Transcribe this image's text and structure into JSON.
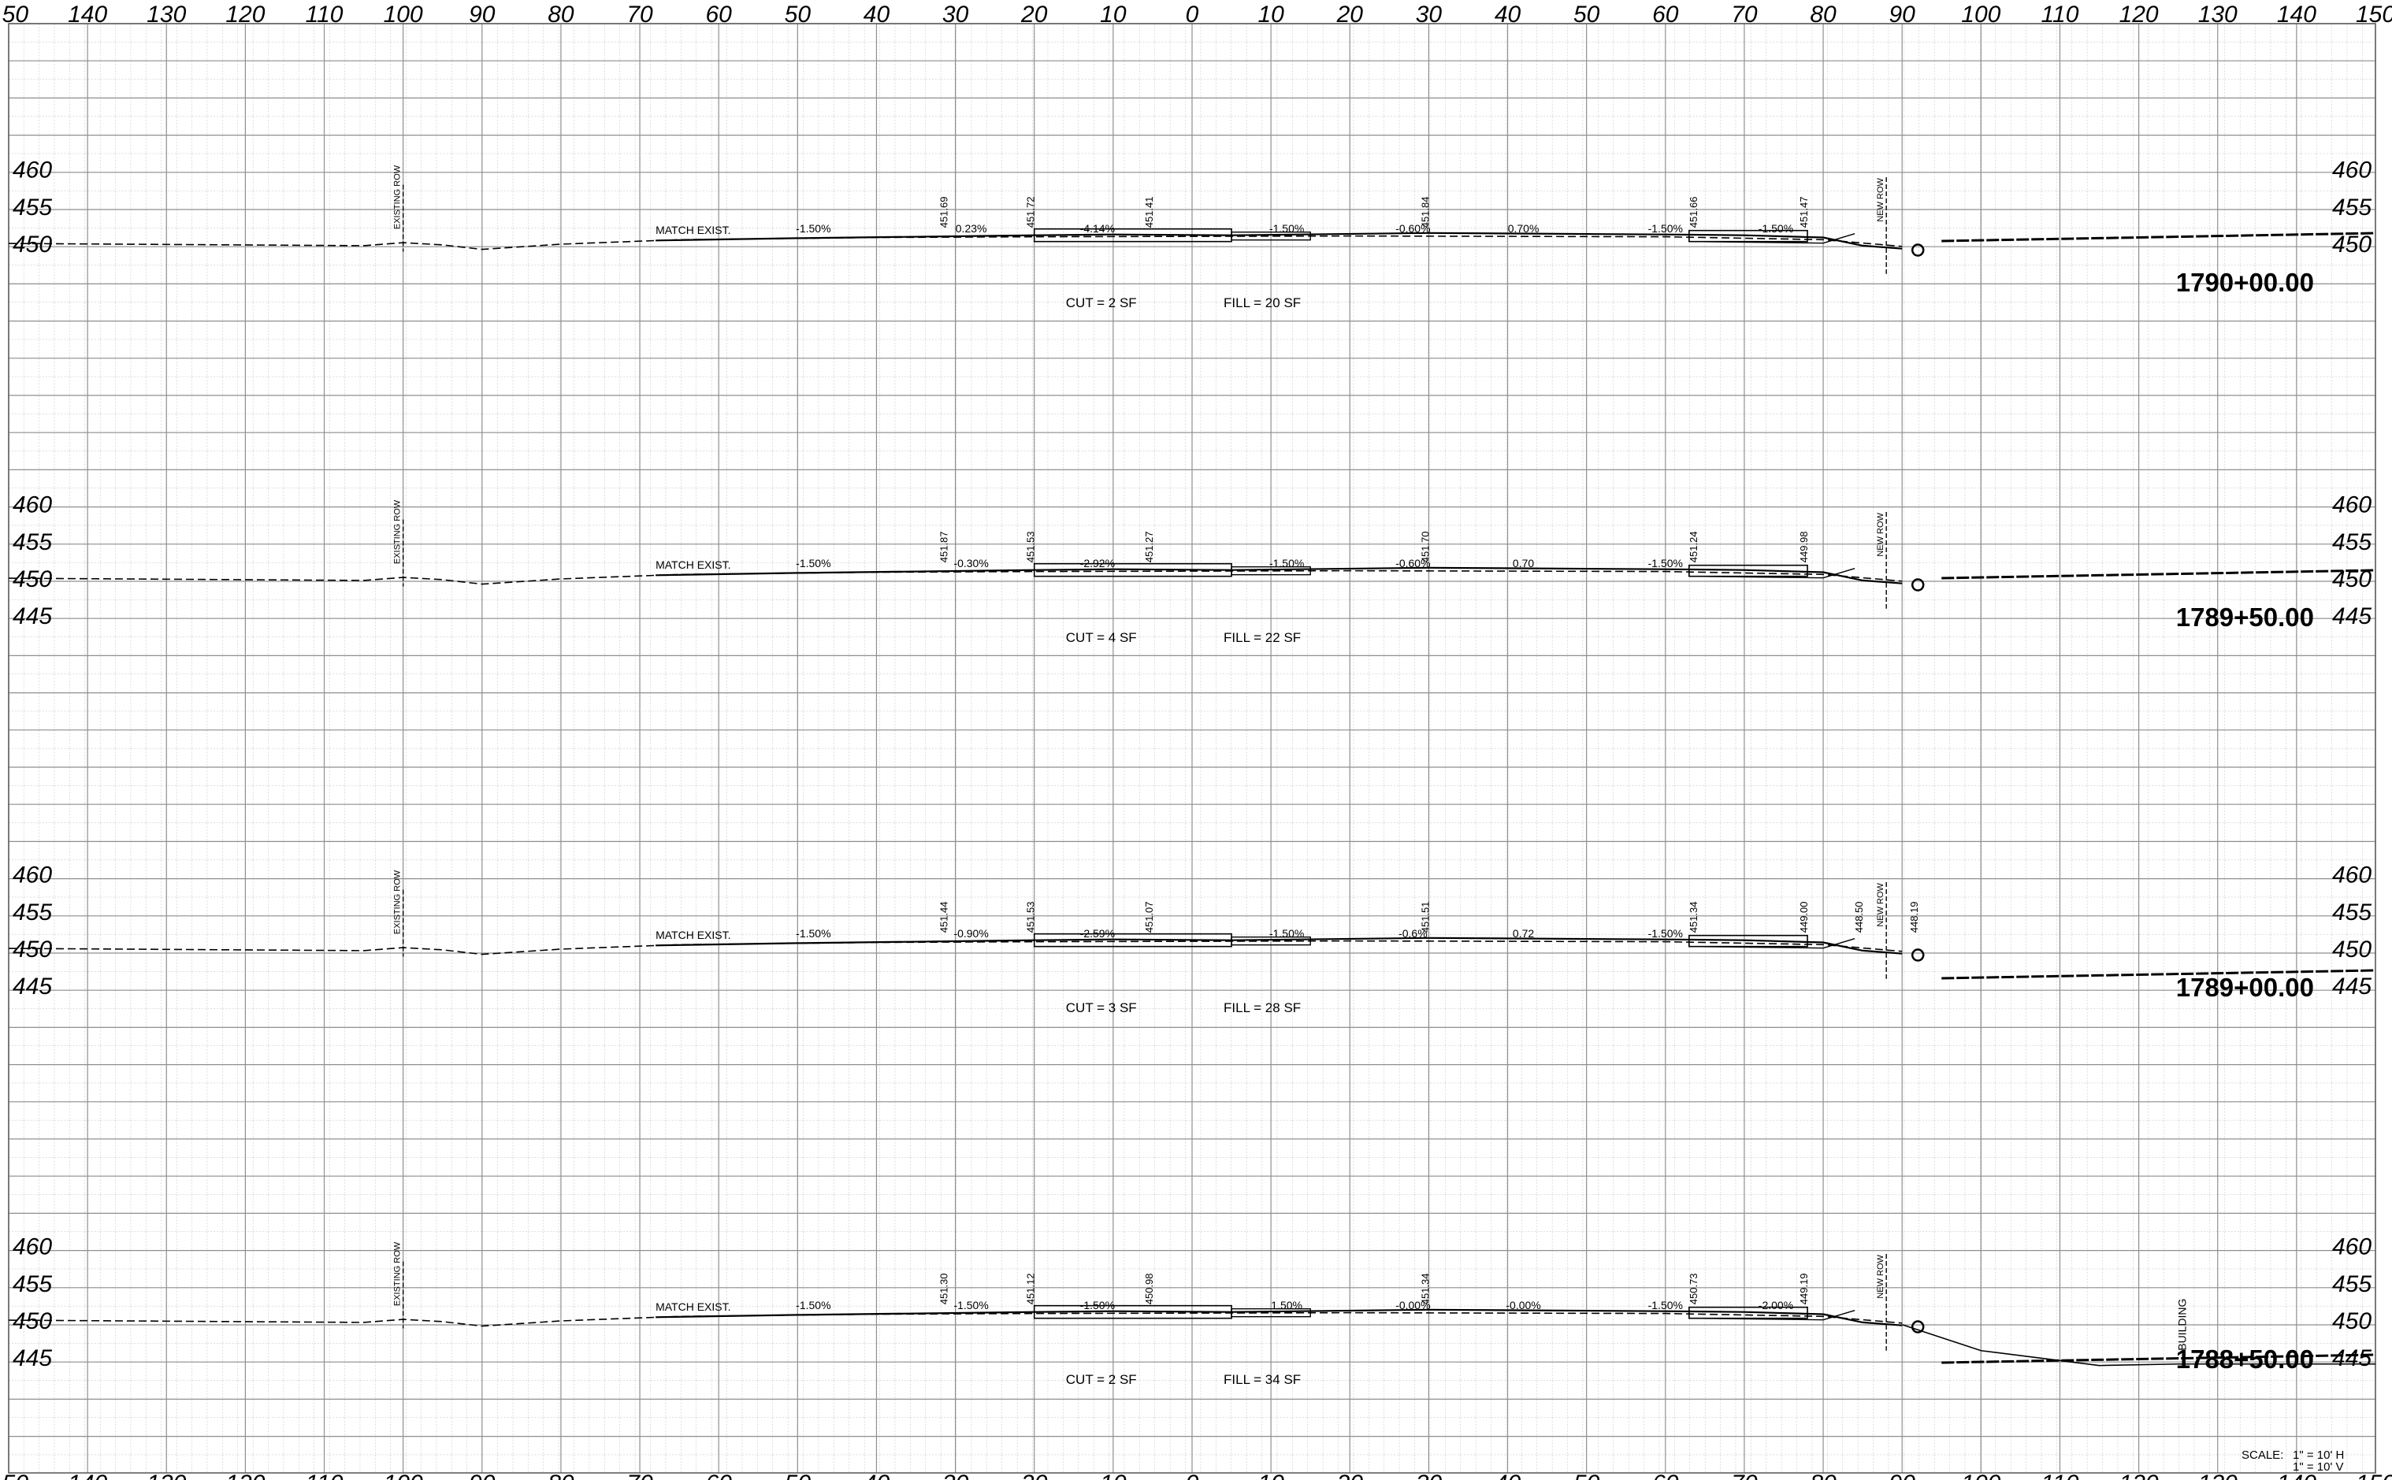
{
  "offset_scale": {
    "top": [
      "150",
      "140",
      "130",
      "120",
      "110",
      "100",
      "90",
      "80",
      "70",
      "60",
      "50",
      "40",
      "30",
      "20",
      "10",
      "0",
      "10",
      "20",
      "30",
      "40",
      "50",
      "60",
      "70",
      "80",
      "90",
      "100",
      "110",
      "120",
      "130",
      "140",
      "150"
    ],
    "bottom": [
      "150",
      "140",
      "130",
      "120",
      "110",
      "100",
      "90",
      "80",
      "70",
      "60",
      "50",
      "40",
      "30",
      "20",
      "10",
      "0",
      "10",
      "20",
      "30",
      "40",
      "50",
      "60",
      "70",
      "80",
      "90",
      "100",
      "110",
      "120",
      "130",
      "140",
      "150"
    ]
  },
  "sections": [
    {
      "station": "1790+00.00",
      "elev_labels": [
        "460",
        "455",
        "450"
      ],
      "cut": "CUT = 2 SF",
      "fill": "FILL = 20 SF",
      "match": "MATCH EXIST.",
      "row_label": "EXISTING ROW",
      "new_row_label": "NEW ROW",
      "grade_labels": [
        "-1.50%",
        "0.23%",
        "-4.14%",
        "-1.50%",
        "-0.60%",
        "0.70%",
        "-1.50%",
        "-1.50%"
      ],
      "elev_points": [
        "451.69",
        "451.72",
        "451.41",
        "451.84",
        "451.66",
        "451.47"
      ]
    },
    {
      "station": "1789+50.00",
      "elev_labels": [
        "460",
        "455",
        "450",
        "445"
      ],
      "cut": "CUT = 4 SF",
      "fill": "FILL = 22 SF",
      "match": "MATCH EXIST.",
      "row_label": "EXISTING ROW",
      "new_row_label": "NEW ROW",
      "grade_labels": [
        "-1.50%",
        "-0.30%",
        "-2.92%",
        "-1.50%",
        "-0.60%",
        "0.70",
        "-1.50%"
      ],
      "elev_points": [
        "451.87",
        "451.53",
        "451.27",
        "451.70",
        "451.24",
        "449.98"
      ]
    },
    {
      "station": "1789+00.00",
      "elev_labels": [
        "460",
        "455",
        "450",
        "445"
      ],
      "cut": "CUT = 3 SF",
      "fill": "FILL = 28 SF",
      "match": "MATCH EXIST.",
      "row_label": "EXISTING ROW",
      "new_row_label": "NEW ROW",
      "grade_labels": [
        "-1.50%",
        "-0.90%",
        "-2.59%",
        "-1.50%",
        "-0.6%",
        "0.72",
        "-1.50%"
      ],
      "elev_points": [
        "451.44",
        "451.53",
        "451.07",
        "451.51",
        "451.34",
        "449.00",
        "448.50",
        "448.19"
      ]
    },
    {
      "station": "1788+50.00",
      "elev_labels": [
        "460",
        "455",
        "450",
        "445"
      ],
      "cut": "CUT = 2 SF",
      "fill": "FILL = 34 SF",
      "match": "MATCH EXIST.",
      "row_label": "EXISTING ROW",
      "new_row_label": "NEW ROW",
      "building_label": "BUILDING",
      "grade_labels": [
        "-1.50%",
        "-1.50%",
        "-1.50%",
        "1.50%",
        "-0.00%",
        "-0.00%",
        "-1.50%",
        "-2.00%"
      ],
      "elev_points": [
        "451.30",
        "451.12",
        "450.98",
        "451.34",
        "450.73",
        "449.19"
      ]
    }
  ],
  "scale": {
    "label": "SCALE:",
    "h": "1\" = 10' H",
    "v": "1\" = 10' V"
  }
}
